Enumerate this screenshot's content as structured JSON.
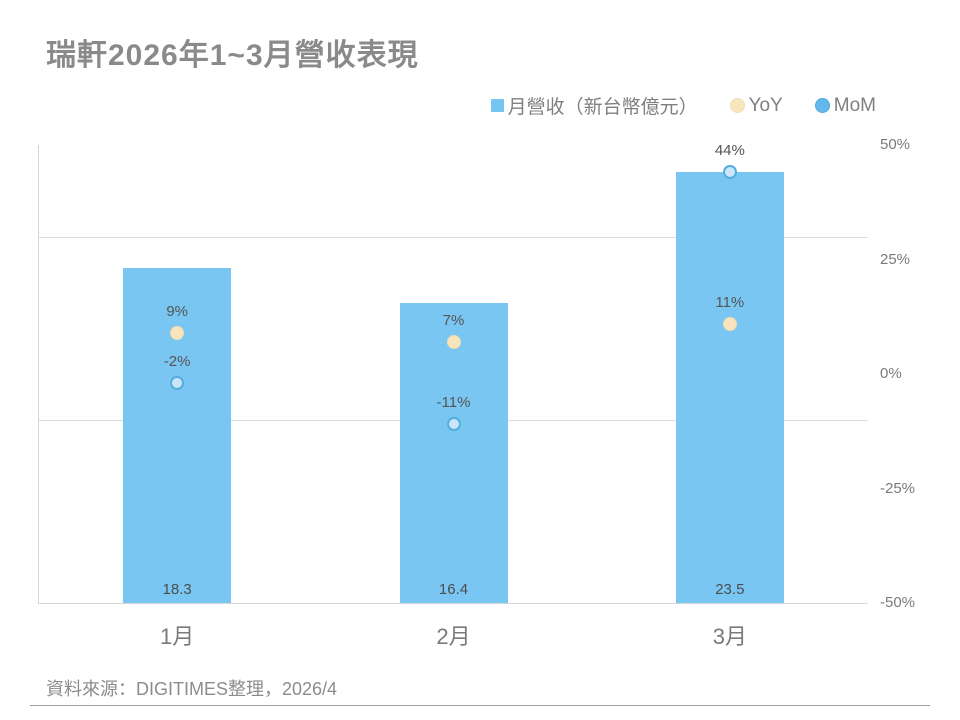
{
  "title": "瑞軒2026年1~3月營收表現",
  "legend": [
    {
      "label": "月營收（新台幣億元）",
      "marker": "square-icon",
      "color": "#74c5f1"
    },
    {
      "label": "YoY",
      "marker": "circle-icon",
      "color": "#f8e4bd",
      "border": "#f0ddb2"
    },
    {
      "label": "MoM",
      "marker": "circle-icon",
      "color": "#63b9ec",
      "border": "#4fa8da"
    }
  ],
  "chart_data": {
    "type": "bar",
    "categories": [
      "1月",
      "2月",
      "3月"
    ],
    "series": [
      {
        "name": "月營收（新台幣億元）",
        "type": "bar",
        "axis": "left",
        "values": [
          18.3,
          16.4,
          23.5
        ],
        "labels": [
          "18.3",
          "16.4",
          "23.5"
        ],
        "color": "#79c6f2"
      },
      {
        "name": "YoY",
        "type": "scatter",
        "axis": "right",
        "values": [
          9,
          7,
          11
        ],
        "labels": [
          "9%",
          "7%",
          "11%"
        ],
        "fill": "#f8e4bd",
        "stroke": "#f0ddb2"
      },
      {
        "name": "MoM",
        "type": "scatter",
        "axis": "right",
        "values": [
          -2,
          -11,
          44
        ],
        "labels": [
          "-2%",
          "-11%",
          "44%"
        ],
        "fill": "#c9e7f9",
        "stroke": "#55addf"
      }
    ],
    "left_axis": {
      "min": 0,
      "max": 25,
      "labels_visible": false,
      "gridline_values": [
        10,
        20
      ]
    },
    "right_axis": {
      "min": -50,
      "max": 50,
      "ticks": [
        {
          "value": 50,
          "label": "50%"
        },
        {
          "value": 25,
          "label": "25%"
        },
        {
          "value": 0,
          "label": "0%"
        },
        {
          "value": -25,
          "label": "-25%"
        },
        {
          "value": -50,
          "label": "-50%"
        }
      ]
    },
    "grid": "horizontal-only",
    "legend_position": "top-right"
  },
  "footer": {
    "source": "資料來源：DIGITIMES整理，2026/4"
  },
  "colors": {
    "bar": "#79c6f2",
    "grid": "#dcdcdc",
    "axis_line": "#d6d6d6",
    "title_text": "#8a8a8a",
    "label_text": "#555555",
    "tick_text": "#7a7a7a"
  }
}
